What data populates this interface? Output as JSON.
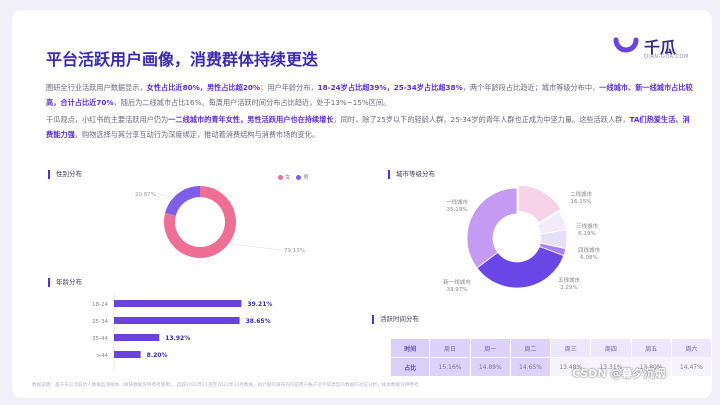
{
  "header": {
    "title": "平台活跃用户画像，消费群体持续更迭",
    "logo_text": "千瓜",
    "logo_sub": "QIAN-GUA.COM"
  },
  "paragraphs": {
    "p1_a": "圈研全行业活跃用户数据显示，",
    "p1_b": "女性占比近80%，男性占比超20%",
    "p1_c": "；用户年龄分布，",
    "p1_d": "18-24岁占比超39%，25-34岁占比超38%",
    "p1_e": "，两个年龄段占比趋近；城市等级分布中，",
    "p1_f": "一线城市、新一线城市占比较高，合计占比近70%",
    "p1_g": "，随后为二线城市占比16%。每周用户活跃时间分布占比趋近，处于13%~15%区间。",
    "p2_a": "千瓜观点，小红书的主要活跃用户仍为",
    "p2_b": "一二线城市的青年女性，男性活跃用户也在持续增长",
    "p2_c": "，同时，除了25岁以下的轻龄人群，25-34岁的青年人群也正成为中坚力量。这些活跃人群，",
    "p2_d": "TA们热爱生活、消费能力强",
    "p2_e": "，购物选择与其分享互动行为深度绑定，推动着消费结构与消费市场的变化。"
  },
  "sections": {
    "gender": "性别分布",
    "age": "年龄分布",
    "city": "城市等级分布",
    "active": "活跃时间分布"
  },
  "gender_legend": {
    "female": "女",
    "male": "男"
  },
  "colors": {
    "accent": "#5b2fd6",
    "female": "#ee6f96",
    "male": "#7c5ee8",
    "bar": "#6a42e0"
  },
  "chart_data": [
    {
      "type": "pie",
      "name": "性别分布",
      "labels": [
        "女",
        "男"
      ],
      "values": [
        79.13,
        20.87
      ],
      "value_labels": [
        "79.13%",
        "20.87%"
      ]
    },
    {
      "type": "bar",
      "name": "年龄分布",
      "categories": [
        "18-24",
        "25-34",
        "35-44",
        ">44"
      ],
      "values": [
        39.21,
        38.65,
        13.92,
        8.2
      ],
      "value_labels": [
        "39.21%",
        "38.65%",
        "13.92%",
        "8.20%"
      ]
    },
    {
      "type": "pie",
      "name": "城市等级分布",
      "labels": [
        "一线城市",
        "新一线城市",
        "二线城市",
        "三线城市",
        "四线城市",
        "五线城市"
      ],
      "values": [
        35.19,
        33.97,
        16.15,
        6.19,
        6.08,
        2.29
      ],
      "value_labels": [
        "35.19%",
        "33.97%",
        "16.15%",
        "6.19%",
        "6.08%",
        "2.29%"
      ]
    },
    {
      "type": "table",
      "name": "活跃时间分布",
      "header": [
        "时间",
        "周日",
        "周一",
        "周二",
        "周三",
        "周四",
        "周五",
        "周六"
      ],
      "row_label": "占比",
      "values": [
        "15.16%",
        "14.89%",
        "14.65%",
        "13.48%",
        "13.31%",
        "13.80%",
        "14.47%"
      ]
    }
  ],
  "footer": "数据说明：基于千瓜活跃达人数据监测样本（微链数据仅供参考使用）。选取2021年11月至2022年10月数据，统计期内发布的仅是用户账户对不同类型的数据的对应分析，样本数据仅供参考。",
  "watermark": "CSDN @暮夕沉烟"
}
